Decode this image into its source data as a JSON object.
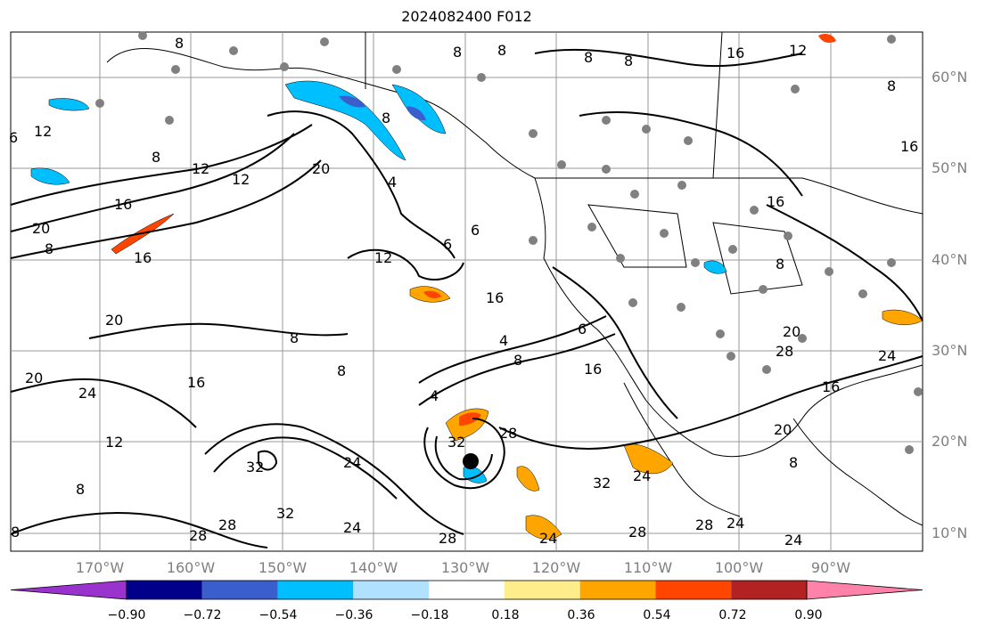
{
  "title": "2024082400 F012",
  "latitude_labels": [
    "60°N",
    "50°N",
    "40°N",
    "30°N",
    "20°N",
    "10°N"
  ],
  "longitude_labels": [
    "170°W",
    "160°W",
    "150°W",
    "140°W",
    "130°W",
    "120°W",
    "110°W",
    "100°W",
    "90°W"
  ],
  "contour_labels": [
    "8",
    "12",
    "16",
    "20",
    "24",
    "28",
    "32",
    "4",
    "6"
  ],
  "colorbar": {
    "tick_labels": [
      "−0.90",
      "−0.72",
      "−0.54",
      "−0.36",
      "−0.18",
      "0.18",
      "0.36",
      "0.54",
      "0.72",
      "0.90"
    ],
    "colors": [
      "#9a32cd",
      "#00008b",
      "#3a5fcd",
      "#00bfff",
      "#b0e2ff",
      "#ffffff",
      "#ffec8b",
      "#ffa500",
      "#ff4500",
      "#b22222",
      "#ff82ab"
    ]
  }
}
